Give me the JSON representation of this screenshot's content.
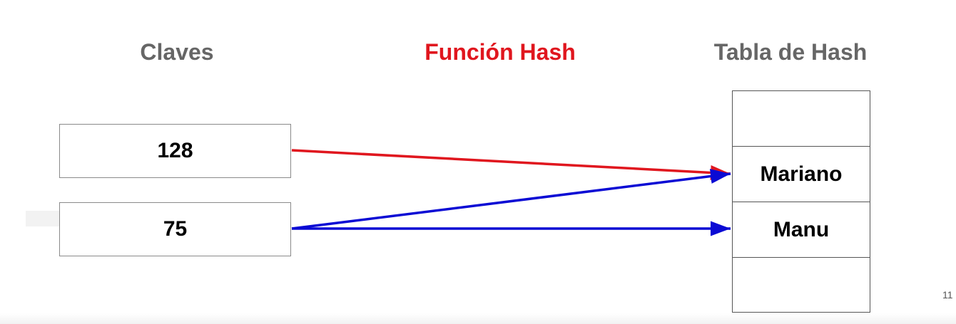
{
  "headings": {
    "keys": "Claves",
    "hash_function": "Función Hash",
    "hash_table": "Tabla de Hash"
  },
  "keys": [
    "128",
    "75"
  ],
  "hash_table": {
    "slots": [
      "",
      "Mariano",
      "Manu",
      ""
    ]
  },
  "mappings": [
    {
      "key": "128",
      "slot": "Mariano",
      "color": "#e0161e"
    },
    {
      "key": "75",
      "slot": "Mariano",
      "color": "#0a0ad4"
    },
    {
      "key": "75",
      "slot": "Manu",
      "color": "#0a0ad4"
    }
  ],
  "colors": {
    "heading_gray": "#666666",
    "heading_red": "#e0161e",
    "arrow_red": "#e0161e",
    "arrow_blue": "#0a0ad4"
  },
  "page_number": "11"
}
